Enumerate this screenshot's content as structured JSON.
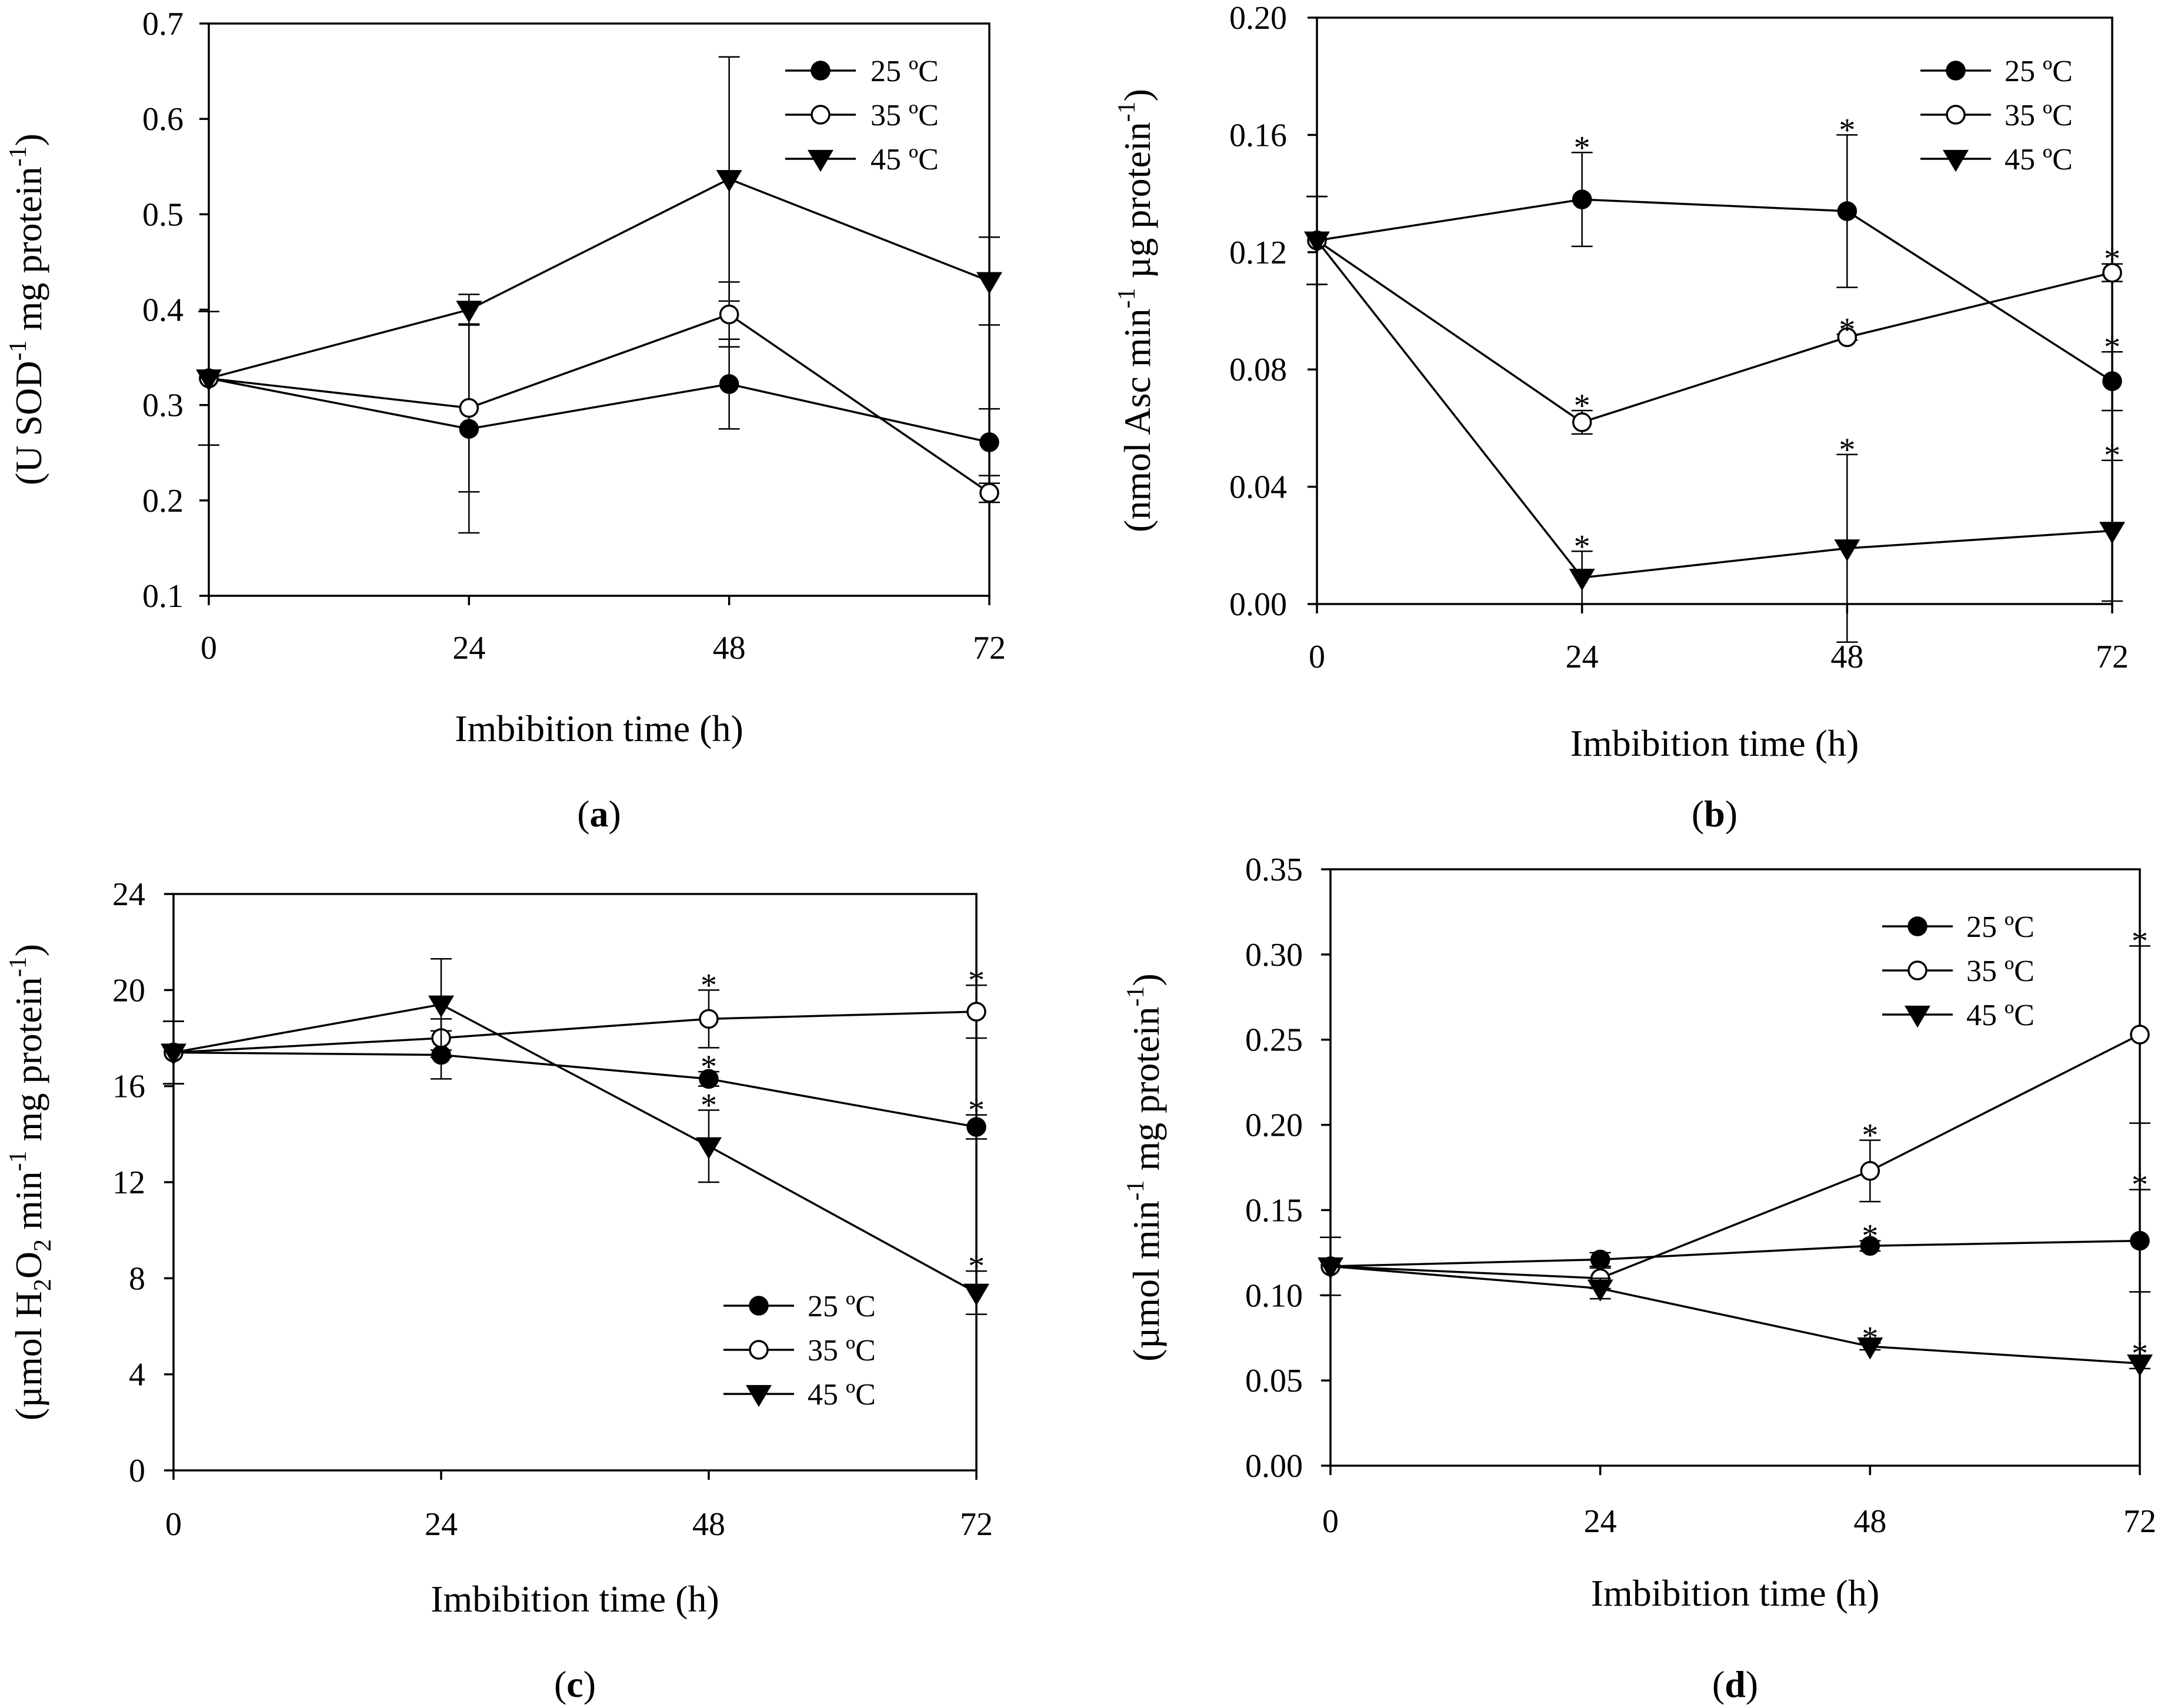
{
  "chart_data": [
    {
      "id": "a",
      "type": "line",
      "panel_label": "a",
      "xlabel": "Imbibition time (h)",
      "ylabel": {
        "pre": "(U SOD",
        "sup1": "-1",
        "mid": " mg protein",
        "sup2": "-1",
        "post": ")"
      },
      "x": [
        0,
        24,
        48,
        72
      ],
      "xlim": [
        0,
        72
      ],
      "xticks": [
        0,
        24,
        48,
        72
      ],
      "xtick_labels": [
        "0",
        "24",
        "48",
        "72"
      ],
      "ylim": [
        0.1,
        0.7
      ],
      "yticks": [
        0.1,
        0.2,
        0.3,
        0.4,
        0.5,
        0.6,
        0.7
      ],
      "ytick_labels": [
        "0.1",
        "0.2",
        "0.3",
        "0.4",
        "0.5",
        "0.6",
        "0.7"
      ],
      "legend_position": "top-right",
      "series": [
        {
          "name": "25 ºC",
          "marker": "filled-circle",
          "values": [
            0.328,
            0.275,
            0.322,
            0.261
          ],
          "err": [
            0.07,
            0.109,
            0.047,
            0.035
          ],
          "stars": [
            false,
            false,
            false,
            false
          ]
        },
        {
          "name": "35 ºC",
          "marker": "open-circle",
          "values": [
            0.328,
            0.297,
            0.395,
            0.208
          ],
          "err": [
            0.07,
            0.088,
            0.034,
            0.01
          ],
          "stars": [
            false,
            false,
            false,
            false
          ]
        },
        {
          "name": "45 ºC",
          "marker": "filled-triangle-down",
          "values": [
            0.328,
            0.4,
            0.537,
            0.43
          ],
          "err": [
            0.07,
            0.016,
            0.128,
            0.046
          ],
          "stars": [
            false,
            false,
            false,
            false
          ]
        }
      ]
    },
    {
      "id": "b",
      "type": "line",
      "panel_label": "b",
      "xlabel": "Imbibition time (h)",
      "ylabel": {
        "pre": "(nmol Asc min",
        "sup1": "-1",
        "mid": " µg protein",
        "sup2": "-1",
        "post": ")"
      },
      "x": [
        0,
        24,
        48,
        72
      ],
      "xlim": [
        0,
        72
      ],
      "xticks": [
        0,
        24,
        48,
        72
      ],
      "xtick_labels": [
        "0",
        "24",
        "48",
        "72"
      ],
      "ylim": [
        0,
        0.2
      ],
      "yticks": [
        0,
        0.04,
        0.08,
        0.12,
        0.16,
        0.2
      ],
      "ytick_labels": [
        "0.00",
        "0.04",
        "0.08",
        "0.12",
        "0.16",
        "0.20"
      ],
      "legend_position": "top-right",
      "series": [
        {
          "name": "25 ºC",
          "marker": "filled-circle",
          "values": [
            0.124,
            0.138,
            0.134,
            0.076
          ],
          "err": [
            0.015,
            0.016,
            0.026,
            0.01
          ],
          "stars": [
            false,
            true,
            true,
            true
          ]
        },
        {
          "name": "35 ºC",
          "marker": "open-circle",
          "values": [
            0.124,
            0.062,
            0.091,
            0.113
          ],
          "err": [
            0.015,
            0.004,
            0.001,
            0.003
          ],
          "stars": [
            false,
            true,
            true,
            true
          ]
        },
        {
          "name": "45 ºC",
          "marker": "filled-triangle-down",
          "values": [
            0.124,
            0.009,
            0.019,
            0.025
          ],
          "err": [
            0.015,
            0.009,
            0.032,
            0.024
          ],
          "stars": [
            false,
            true,
            true,
            true
          ]
        }
      ]
    },
    {
      "id": "c",
      "type": "line",
      "panel_label": "c",
      "xlabel": "Imbibition time (h)",
      "ylabel": {
        "pre": "(µmol H",
        "sub1": "2",
        "mid1": "O",
        "sub2": "2",
        "mid2": " min",
        "sup1": "-1",
        "mid3": " mg protein",
        "sup2": "-1",
        "post": ")"
      },
      "x": [
        0,
        24,
        48,
        72
      ],
      "xlim": [
        0,
        72
      ],
      "xticks": [
        0,
        24,
        48,
        72
      ],
      "xtick_labels": [
        "0",
        "24",
        "48",
        "72"
      ],
      "ylim": [
        0,
        24
      ],
      "yticks": [
        0,
        4,
        8,
        12,
        16,
        20,
        24
      ],
      "ytick_labels": [
        "0",
        "4",
        "8",
        "12",
        "16",
        "20",
        "24"
      ],
      "legend_position": "bottom-right",
      "series": [
        {
          "name": "25 ºC",
          "marker": "filled-circle",
          "values": [
            17.4,
            17.3,
            16.3,
            14.3
          ],
          "err": [
            1.3,
            1.0,
            0.3,
            0.5
          ],
          "stars": [
            false,
            false,
            true,
            true
          ]
        },
        {
          "name": "35 ºC",
          "marker": "open-circle",
          "values": [
            17.4,
            18.0,
            18.8,
            19.1
          ],
          "err": [
            1.3,
            0.8,
            1.2,
            1.1
          ],
          "stars": [
            false,
            false,
            true,
            true
          ]
        },
        {
          "name": "45 ºC",
          "marker": "filled-triangle-down",
          "values": [
            17.4,
            19.4,
            13.5,
            7.4
          ],
          "err": [
            1.3,
            1.9,
            1.5,
            0.9
          ],
          "stars": [
            false,
            false,
            true,
            true
          ]
        }
      ]
    },
    {
      "id": "d",
      "type": "line",
      "panel_label": "d",
      "xlabel": "Imbibition time (h)",
      "ylabel": {
        "pre": "(µmol min",
        "sup1": "-1",
        "mid": " mg protein",
        "sup2": "-1",
        "post": ")"
      },
      "x": [
        0,
        24,
        48,
        72
      ],
      "xlim": [
        0,
        72
      ],
      "xticks": [
        0,
        24,
        48,
        72
      ],
      "xtick_labels": [
        "0",
        "24",
        "48",
        "72"
      ],
      "ylim": [
        0,
        0.35
      ],
      "yticks": [
        0,
        0.05,
        0.1,
        0.15,
        0.2,
        0.25,
        0.3,
        0.35
      ],
      "ytick_labels": [
        "0.00",
        "0.05",
        "0.10",
        "0.15",
        "0.20",
        "0.25",
        "0.30",
        "0.35"
      ],
      "legend_position": "top-right",
      "series": [
        {
          "name": "25 ºC",
          "marker": "filled-circle",
          "values": [
            0.117,
            0.121,
            0.129,
            0.132
          ],
          "err": [
            0.017,
            0.004,
            0.003,
            0.03
          ],
          "stars": [
            false,
            false,
            true,
            true
          ]
        },
        {
          "name": "35 ºC",
          "marker": "open-circle",
          "values": [
            0.117,
            0.11,
            0.173,
            0.253
          ],
          "err": [
            0.017,
            0.006,
            0.018,
            0.052
          ],
          "stars": [
            false,
            false,
            true,
            true
          ]
        },
        {
          "name": "45 ºC",
          "marker": "filled-triangle-down",
          "values": [
            0.117,
            0.104,
            0.07,
            0.06
          ],
          "err": [
            0.017,
            0.006,
            0.002,
            0.003
          ],
          "stars": [
            false,
            false,
            true,
            true
          ]
        }
      ]
    }
  ]
}
